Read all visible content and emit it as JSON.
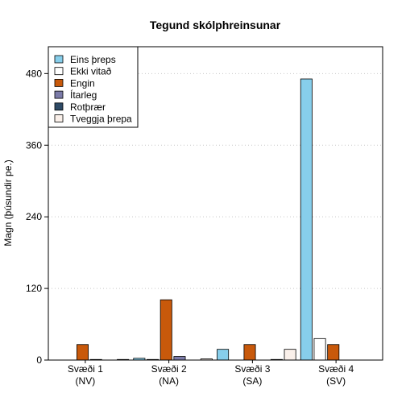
{
  "chart_data": {
    "type": "bar",
    "title": "Tegund skólphreinsunar",
    "xlabel": "",
    "ylabel": "Magn (þúsundir pe.)",
    "ylim": [
      0,
      525
    ],
    "yticks": [
      0,
      120,
      240,
      360,
      480
    ],
    "grid": "horizontal dotted",
    "legend_position": "top-left",
    "categories": [
      "Svæði 1\n(NV)",
      "Svæði 2\n(NA)",
      "Svæði 3\n(SA)",
      "Svæði 4\n(SV)"
    ],
    "series": [
      {
        "name": "Eins þreps",
        "color": "#87CEEB",
        "values": [
          0,
          3,
          18,
          471
        ]
      },
      {
        "name": "Ekki vitað",
        "color": "#FFFFFF",
        "values": [
          0,
          1,
          0,
          36
        ]
      },
      {
        "name": "Engin",
        "color": "#C8590B",
        "values": [
          26,
          101,
          26,
          26
        ]
      },
      {
        "name": "Ítarleg",
        "color": "#7B7BA8",
        "values": [
          1,
          6,
          0,
          0
        ]
      },
      {
        "name": "Rotþrær",
        "color": "#2E4A66",
        "values": [
          0,
          0,
          1,
          0
        ]
      },
      {
        "name": "Tveggja þrepa",
        "color": "#FAF0EA",
        "values": [
          1,
          2,
          18,
          0
        ]
      }
    ]
  }
}
